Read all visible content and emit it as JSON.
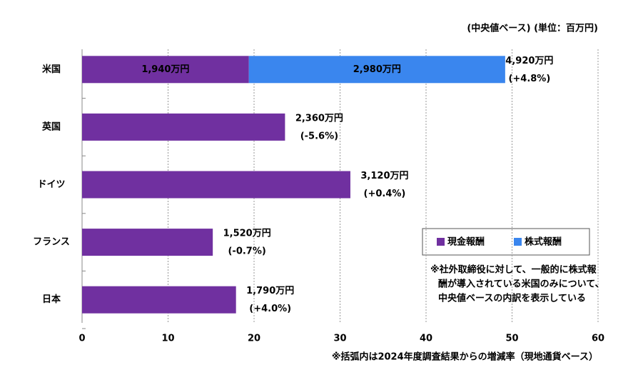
{
  "chart_data": {
    "type": "stacked-bar-horizontal",
    "note_top": "(中央値ベース) (単位：百万円)",
    "footnote": "※括弧内は2024年度調査結果からの増減率（現地通貨ベース）",
    "categories": [
      "米国",
      "英国",
      "ドイツ",
      "フランス",
      "日本"
    ],
    "series": [
      {
        "name": "現金報酬",
        "color": "#7030a0",
        "values": [
          19.4,
          23.6,
          31.2,
          15.2,
          17.9
        ],
        "value_labels": [
          "1,940万円",
          "2,360万円",
          "3,120万円",
          "1,520万円",
          "1,790万円"
        ]
      },
      {
        "name": "株式報酬",
        "color": "#3a86ee",
        "values": [
          29.8,
          null,
          null,
          null,
          null
        ],
        "value_labels": [
          "2,980万円",
          null,
          null,
          null,
          null
        ]
      }
    ],
    "totals": {
      "values": [
        49.2,
        null,
        null,
        null,
        null
      ],
      "value_labels": [
        "4,920万円",
        null,
        null,
        null,
        null
      ]
    },
    "changes": {
      "values": [
        4.8,
        -5.6,
        0.4,
        -0.7,
        4.0
      ],
      "value_labels": [
        "(+4.8%)",
        "(-5.6%)",
        "(+0.4%)",
        "(-0.7%)",
        "(+4.0%)"
      ],
      "positive_color": "#1f6fbf",
      "negative_color": "#e00000"
    },
    "legend_note": [
      "※社外取締役に対して、一般的に株式報",
      "酬が導入されている米国のみについて、",
      "中央値ベースの内訳を表示している"
    ],
    "xlim": [
      0,
      60
    ],
    "xticks": [
      0,
      10,
      20,
      30,
      40,
      50,
      60
    ],
    "grid": true
  }
}
